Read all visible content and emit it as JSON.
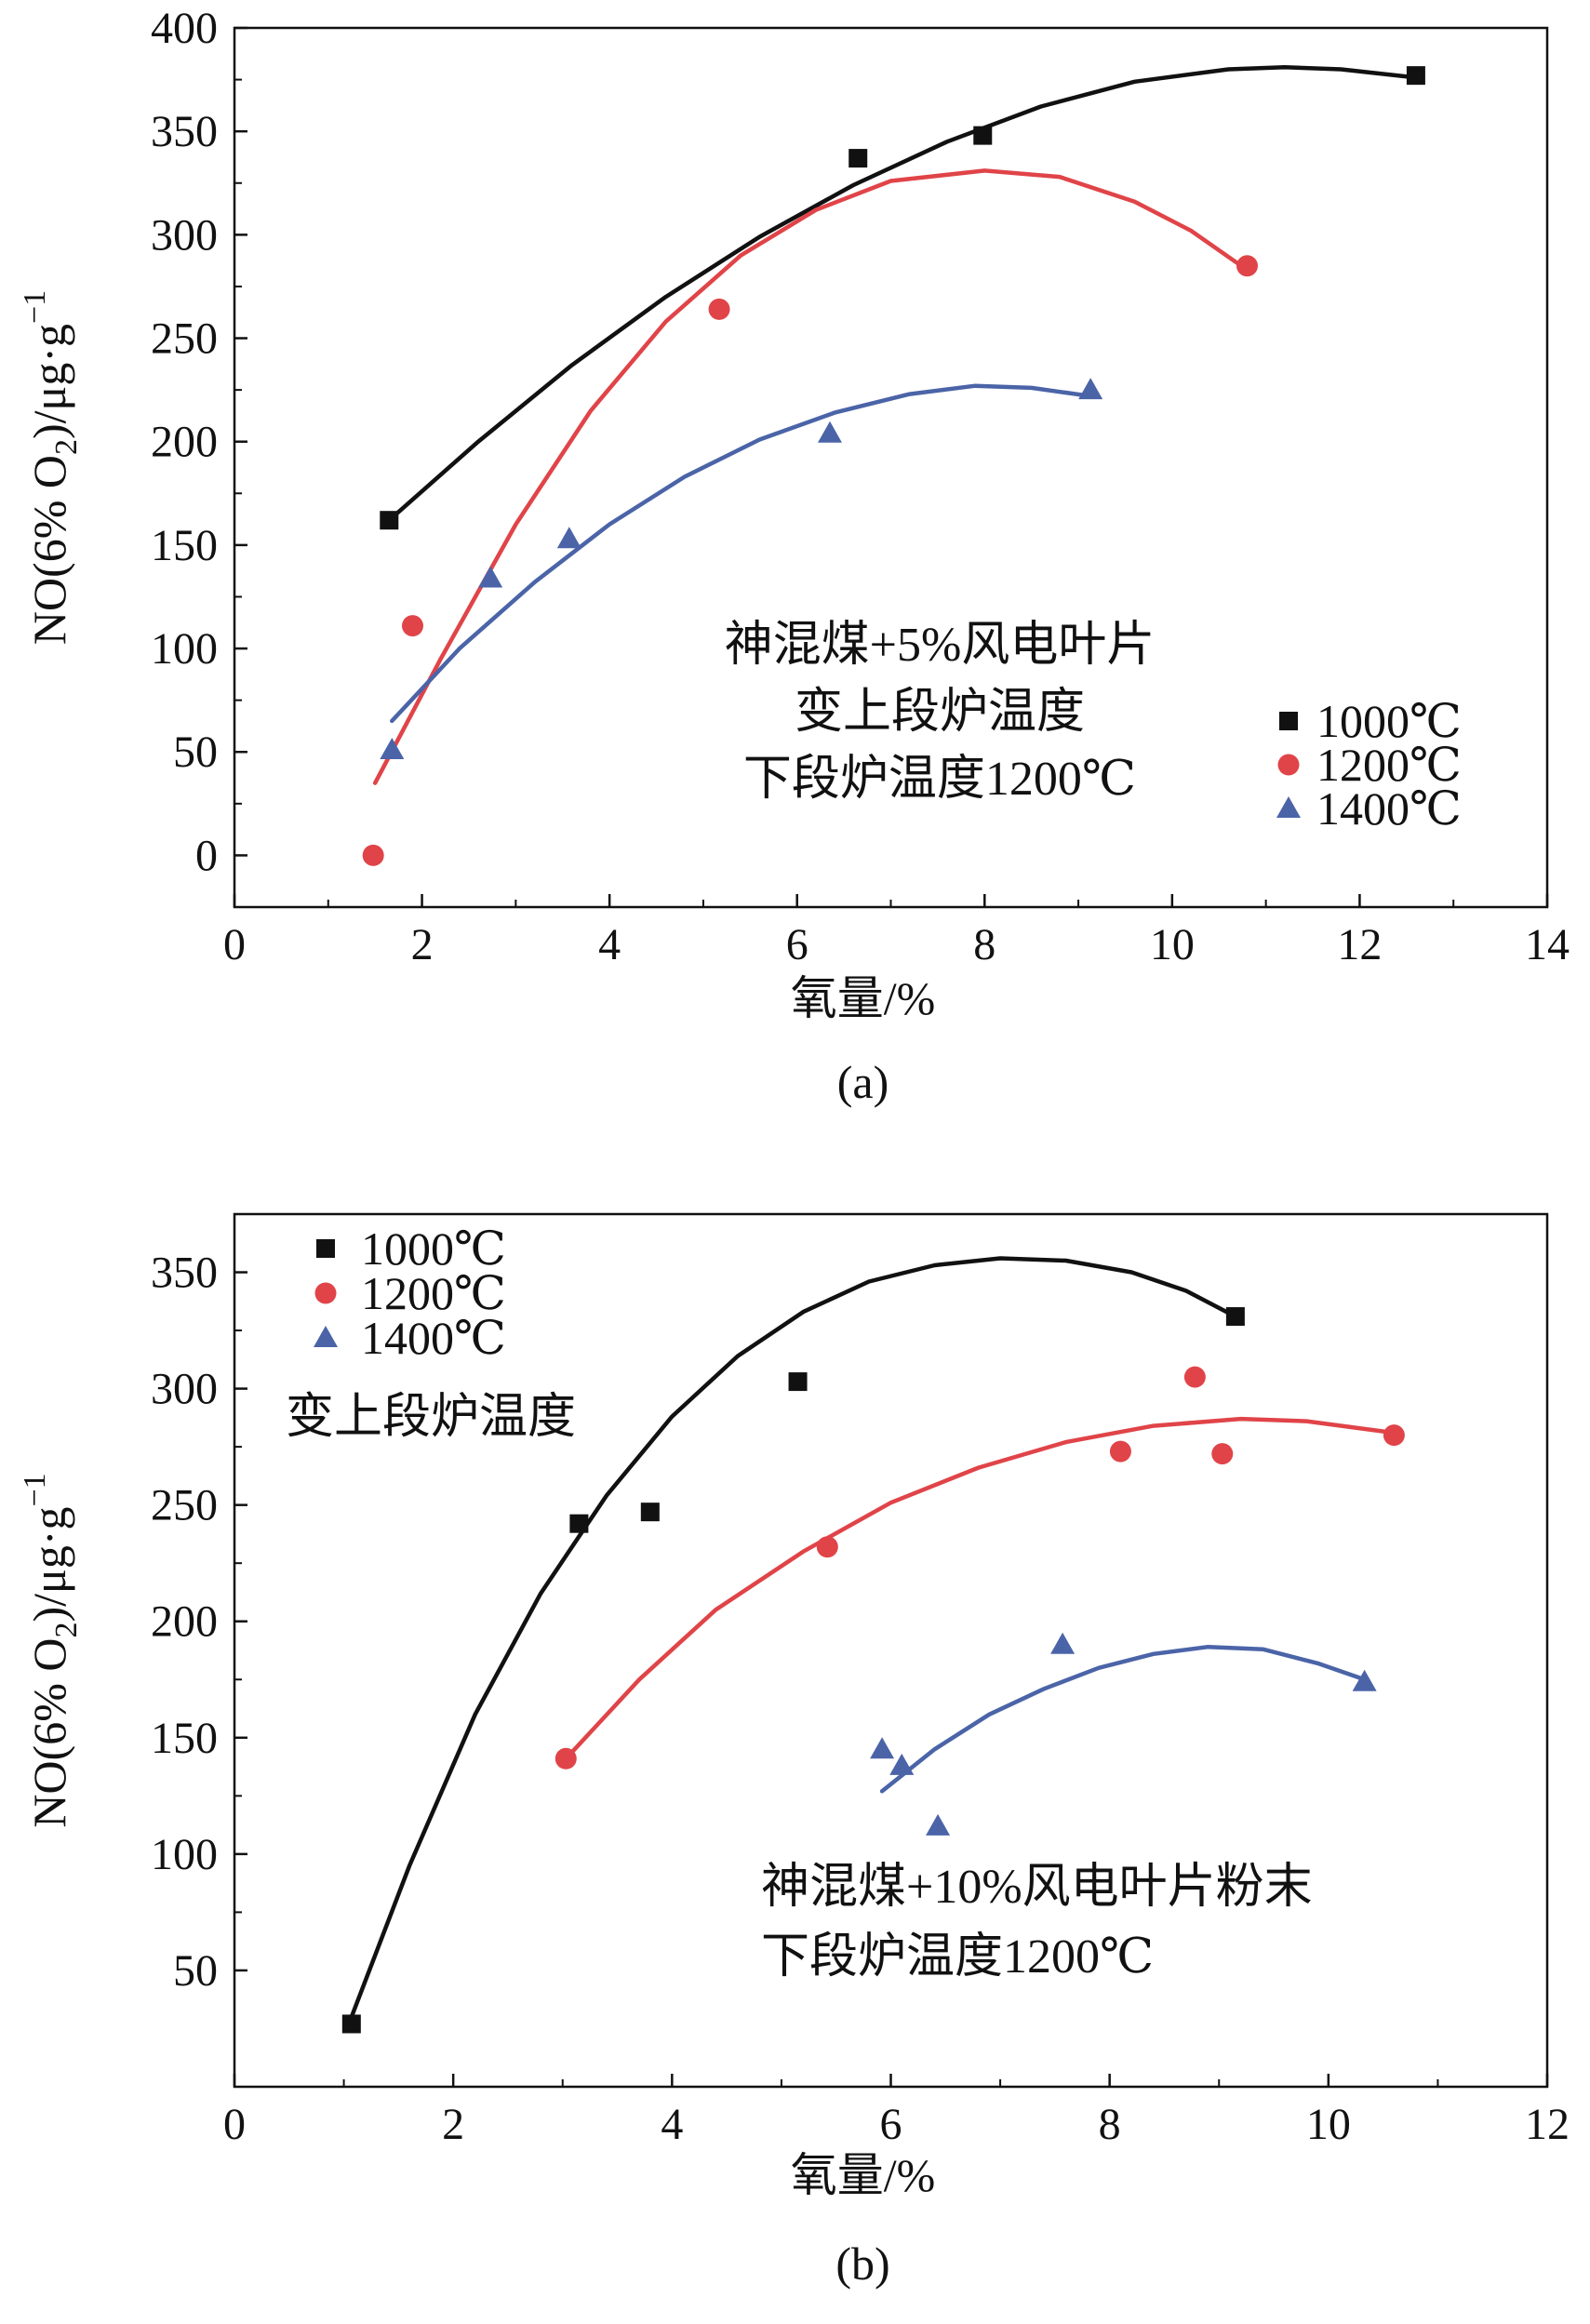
{
  "chart_data": [
    {
      "panel_label": "(a)",
      "type": "scatter",
      "xlabel": "氧量/%",
      "ylabel_parts": {
        "main": "NO(6% O",
        "sub": "2",
        "rest": ")/μg·g",
        "sup": "−1"
      },
      "x_ticks": [
        "0",
        "2",
        "4",
        "6",
        "8",
        "10",
        "12",
        "14"
      ],
      "y_ticks": [
        "0",
        "50",
        "100",
        "150",
        "200",
        "250",
        "300",
        "350",
        "400"
      ],
      "xlim": [
        0,
        14
      ],
      "ylim": [
        -25,
        400
      ],
      "annotation": [
        "神混煤+5%风电叶片",
        "变上段炉温度",
        "下段炉温度1200℃"
      ],
      "legend_position": "right",
      "series": [
        {
          "name": "1000℃",
          "marker": "square",
          "color": "#111111",
          "points": [
            [
              1.65,
              162
            ],
            [
              6.65,
              337
            ],
            [
              7.98,
              348
            ],
            [
              12.6,
              377
            ]
          ],
          "fit": [
            [
              1.65,
              162
            ],
            [
              2.6,
              200
            ],
            [
              3.6,
              237
            ],
            [
              4.6,
              270
            ],
            [
              5.6,
              299
            ],
            [
              6.6,
              324
            ],
            [
              7.6,
              345
            ],
            [
              8.6,
              362
            ],
            [
              9.6,
              374
            ],
            [
              10.6,
              380
            ],
            [
              11.2,
              381
            ],
            [
              11.8,
              380
            ],
            [
              12.6,
              376
            ]
          ]
        },
        {
          "name": "1200℃",
          "marker": "circle",
          "color": "#e04448",
          "points": [
            [
              1.48,
              0
            ],
            [
              1.9,
              111
            ],
            [
              5.17,
              264
            ],
            [
              10.8,
              285
            ]
          ],
          "fit": [
            [
              1.5,
              35
            ],
            [
              2.2,
              95
            ],
            [
              3.0,
              160
            ],
            [
              3.8,
              215
            ],
            [
              4.6,
              258
            ],
            [
              5.4,
              290
            ],
            [
              6.2,
              312
            ],
            [
              7.0,
              326
            ],
            [
              8.0,
              331
            ],
            [
              8.8,
              328
            ],
            [
              9.6,
              316
            ],
            [
              10.2,
              302
            ],
            [
              10.8,
              283
            ]
          ]
        },
        {
          "name": "1400℃",
          "marker": "triangle",
          "color": "#4b64a8",
          "points": [
            [
              1.68,
              51
            ],
            [
              2.73,
              134
            ],
            [
              3.57,
              153
            ],
            [
              6.35,
              204
            ],
            [
              9.13,
              225
            ]
          ],
          "fit": [
            [
              1.68,
              65
            ],
            [
              2.4,
              100
            ],
            [
              3.2,
              132
            ],
            [
              4.0,
              160
            ],
            [
              4.8,
              183
            ],
            [
              5.6,
              201
            ],
            [
              6.4,
              214
            ],
            [
              7.2,
              223
            ],
            [
              7.9,
              227
            ],
            [
              8.5,
              226
            ],
            [
              9.13,
              222
            ]
          ]
        }
      ]
    },
    {
      "panel_label": "(b)",
      "type": "scatter",
      "xlabel": "氧量/%",
      "ylabel_parts": {
        "main": "NO(6% O",
        "sub": "2",
        "rest": ")/μg·g",
        "sup": "−1"
      },
      "x_ticks": [
        "0",
        "2",
        "4",
        "6",
        "8",
        "10",
        "12"
      ],
      "y_ticks": [
        "50",
        "100",
        "150",
        "200",
        "250",
        "300",
        "350"
      ],
      "xlim": [
        0,
        12
      ],
      "ylim": [
        0,
        375
      ],
      "annotation_top": [
        "变上段炉温度"
      ],
      "annotation_bottom": [
        "神混煤+10%风电叶片粉末",
        "下段炉温度1200℃"
      ],
      "legend_position": "top-left",
      "series": [
        {
          "name": "1000℃",
          "marker": "square",
          "color": "#111111",
          "points": [
            [
              1.07,
              27
            ],
            [
              3.15,
              242
            ],
            [
              3.8,
              247
            ],
            [
              5.15,
              303
            ],
            [
              9.15,
              331
            ]
          ],
          "fit": [
            [
              1.07,
              30
            ],
            [
              1.6,
              95
            ],
            [
              2.2,
              160
            ],
            [
              2.8,
              212
            ],
            [
              3.4,
              254
            ],
            [
              4.0,
              288
            ],
            [
              4.6,
              314
            ],
            [
              5.2,
              333
            ],
            [
              5.8,
              346
            ],
            [
              6.4,
              353
            ],
            [
              7.0,
              356
            ],
            [
              7.6,
              355
            ],
            [
              8.2,
              350
            ],
            [
              8.7,
              342
            ],
            [
              9.15,
              331
            ]
          ]
        },
        {
          "name": "1200℃",
          "marker": "circle",
          "color": "#e04448",
          "points": [
            [
              3.03,
              141
            ],
            [
              5.42,
              232
            ],
            [
              8.1,
              273
            ],
            [
              8.78,
              305
            ],
            [
              9.03,
              272
            ],
            [
              10.6,
              280
            ]
          ],
          "fit": [
            [
              3.03,
              141
            ],
            [
              3.7,
              175
            ],
            [
              4.4,
              205
            ],
            [
              5.2,
              230
            ],
            [
              6.0,
              251
            ],
            [
              6.8,
              266
            ],
            [
              7.6,
              277
            ],
            [
              8.4,
              284
            ],
            [
              9.2,
              287
            ],
            [
              9.8,
              286
            ],
            [
              10.6,
              281
            ]
          ]
        },
        {
          "name": "1400℃",
          "marker": "triangle",
          "color": "#4b64a8",
          "points": [
            [
              5.92,
              145
            ],
            [
              6.1,
              138
            ],
            [
              6.43,
              112
            ],
            [
              7.57,
              190
            ],
            [
              10.33,
              174
            ]
          ],
          "fit": [
            [
              5.92,
              127
            ],
            [
              6.4,
              145
            ],
            [
              6.9,
              160
            ],
            [
              7.4,
              171
            ],
            [
              7.9,
              180
            ],
            [
              8.4,
              186
            ],
            [
              8.9,
              189
            ],
            [
              9.4,
              188
            ],
            [
              9.9,
              182
            ],
            [
              10.33,
              175
            ]
          ]
        }
      ]
    }
  ]
}
